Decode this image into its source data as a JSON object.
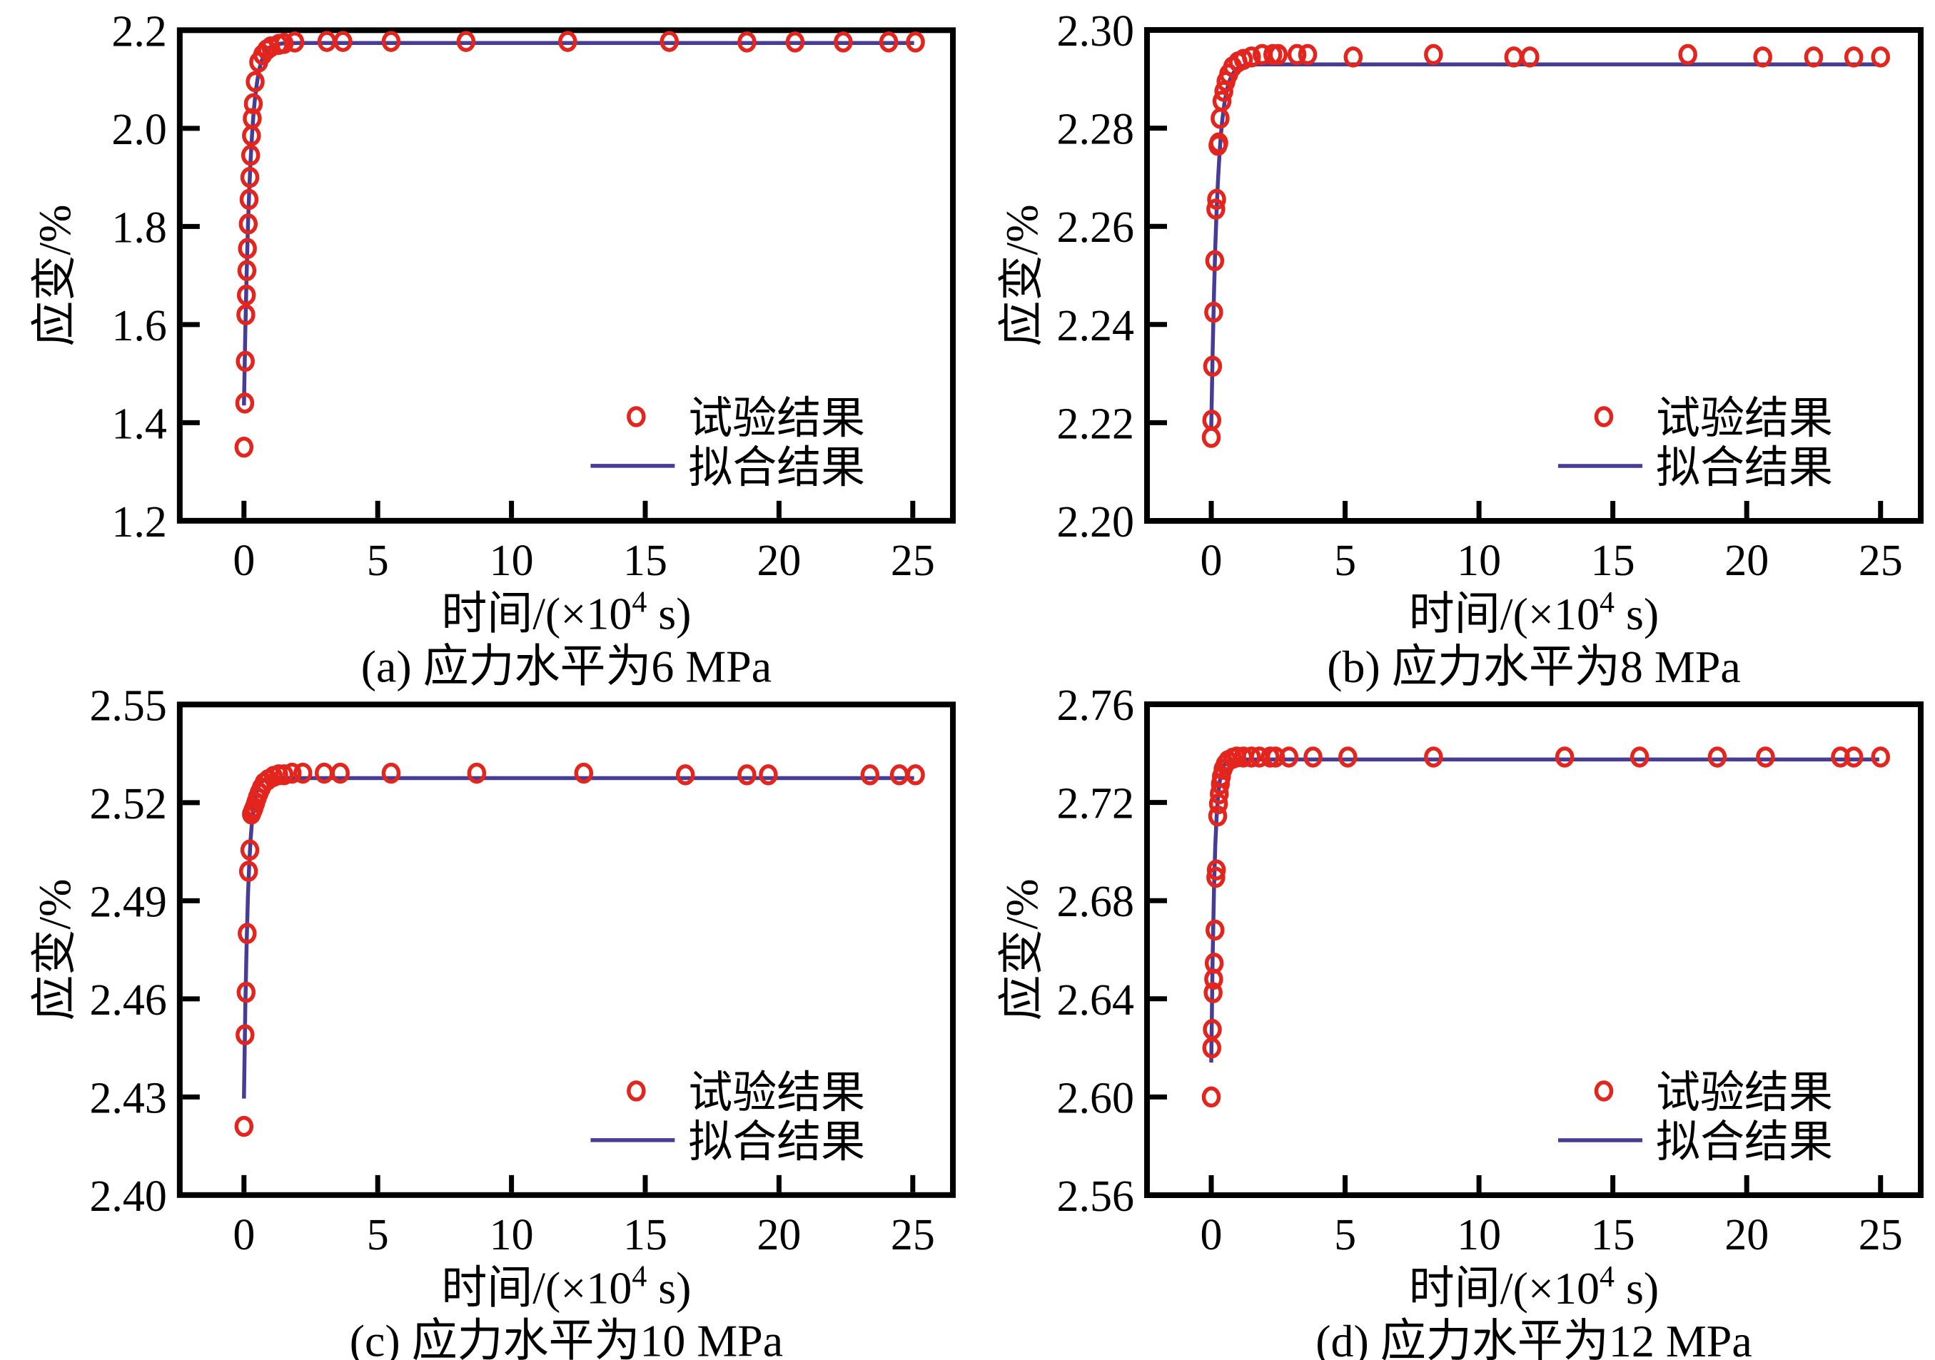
{
  "figure": {
    "background": "#ffffff"
  },
  "colors": {
    "marker": "#e3251e",
    "fit_line": "#473c96",
    "axis": "#000000"
  },
  "ylabel": "应变/%",
  "xlabel": {
    "prefix": "时间/(×10",
    "sup": "4",
    "suffix": " s)"
  },
  "legend": {
    "experiment": "试验结果",
    "fit": "拟合结果"
  },
  "chart_data": [
    {
      "type": "scatter",
      "caption": "(a) 应力水平为6 MPa",
      "xlabel": "时间/(×10⁴ s)",
      "ylabel": "应变/%",
      "xlim": [
        -2.4,
        26.5
      ],
      "ylim": [
        1.2,
        2.2
      ],
      "xticks": {
        "values": [
          0,
          5,
          10,
          15,
          20,
          25
        ],
        "labels": [
          "0",
          "5",
          "10",
          "15",
          "20",
          "25"
        ]
      },
      "yticks": {
        "values": [
          1.2,
          1.4,
          1.6,
          1.8,
          2.0,
          2.2
        ],
        "labels": [
          "1.2",
          "1.4",
          "1.6",
          "1.8",
          "2.0",
          "2.2"
        ]
      },
      "series": [
        {
          "name": "试验结果",
          "style": "open-circle"
        },
        {
          "name": "拟合结果",
          "style": "line"
        }
      ],
      "fit": {
        "start": 1.435,
        "plateau": 2.174,
        "tau": 0.22,
        "tmax": 25.1
      },
      "points": [
        [
          0,
          1.35
        ],
        [
          0.03,
          1.44
        ],
        [
          0.05,
          1.525
        ],
        [
          0.07,
          1.62
        ],
        [
          0.09,
          1.66
        ],
        [
          0.11,
          1.71
        ],
        [
          0.13,
          1.755
        ],
        [
          0.16,
          1.805
        ],
        [
          0.19,
          1.855
        ],
        [
          0.22,
          1.9
        ],
        [
          0.25,
          1.945
        ],
        [
          0.28,
          1.985
        ],
        [
          0.31,
          2.02
        ],
        [
          0.35,
          2.05
        ],
        [
          0.42,
          2.095
        ],
        [
          0.55,
          2.135
        ],
        [
          0.7,
          2.15
        ],
        [
          0.85,
          2.16
        ],
        [
          1.0,
          2.166
        ],
        [
          1.3,
          2.171
        ],
        [
          1.5,
          2.173
        ],
        [
          1.9,
          2.176
        ],
        [
          3.1,
          2.177
        ],
        [
          3.7,
          2.177
        ],
        [
          5.5,
          2.177
        ],
        [
          8.3,
          2.177
        ],
        [
          12.1,
          2.177
        ],
        [
          15.9,
          2.177
        ],
        [
          18.8,
          2.176
        ],
        [
          20.6,
          2.176
        ],
        [
          22.4,
          2.176
        ],
        [
          24.1,
          2.176
        ],
        [
          25.1,
          2.176
        ]
      ]
    },
    {
      "type": "scatter",
      "caption": "(b) 应力水平为8 MPa",
      "xlabel": "时间/(×10⁴ s)",
      "ylabel": "应变/%",
      "xlim": [
        -2.4,
        26.5
      ],
      "ylim": [
        2.2,
        2.3
      ],
      "xticks": {
        "values": [
          0,
          5,
          10,
          15,
          20,
          25
        ],
        "labels": [
          "0",
          "5",
          "10",
          "15",
          "20",
          "25"
        ]
      },
      "yticks": {
        "values": [
          2.2,
          2.22,
          2.24,
          2.26,
          2.28,
          2.3
        ],
        "labels": [
          "2.20",
          "2.22",
          "2.24",
          "2.26",
          "2.28",
          "2.30"
        ]
      },
      "series": [
        {
          "name": "试验结果",
          "style": "open-circle"
        },
        {
          "name": "拟合结果",
          "style": "line"
        }
      ],
      "fit": {
        "start": 2.219,
        "plateau": 2.293,
        "tau": 0.22,
        "tmax": 25.0
      },
      "points": [
        [
          0,
          2.217
        ],
        [
          0.02,
          2.2205
        ],
        [
          0.05,
          2.2315
        ],
        [
          0.09,
          2.2425
        ],
        [
          0.13,
          2.253
        ],
        [
          0.17,
          2.2635
        ],
        [
          0.2,
          2.2655
        ],
        [
          0.25,
          2.2765
        ],
        [
          0.28,
          2.277
        ],
        [
          0.33,
          2.282
        ],
        [
          0.4,
          2.2855
        ],
        [
          0.47,
          2.2875
        ],
        [
          0.55,
          2.2895
        ],
        [
          0.65,
          2.291
        ],
        [
          0.8,
          2.2925
        ],
        [
          1.0,
          2.2935
        ],
        [
          1.2,
          2.294
        ],
        [
          1.5,
          2.2945
        ],
        [
          1.9,
          2.295
        ],
        [
          2.3,
          2.295
        ],
        [
          2.5,
          2.295
        ],
        [
          3.2,
          2.295
        ],
        [
          3.6,
          2.295
        ],
        [
          5.3,
          2.2945
        ],
        [
          8.3,
          2.295
        ],
        [
          11.3,
          2.2945
        ],
        [
          11.9,
          2.2945
        ],
        [
          17.8,
          2.295
        ],
        [
          20.6,
          2.2945
        ],
        [
          22.5,
          2.2945
        ],
        [
          24.0,
          2.2945
        ],
        [
          25.0,
          2.2945
        ]
      ]
    },
    {
      "type": "scatter",
      "caption": "(c) 应力水平为10 MPa",
      "xlabel": "时间/(×10⁴ s)",
      "ylabel": "应变/%",
      "xlim": [
        -2.4,
        26.5
      ],
      "ylim": [
        2.4,
        2.55
      ],
      "xticks": {
        "values": [
          0,
          5,
          10,
          15,
          20,
          25
        ],
        "labels": [
          "0",
          "5",
          "10",
          "15",
          "20",
          "25"
        ]
      },
      "yticks": {
        "values": [
          2.4,
          2.43,
          2.46,
          2.49,
          2.52,
          2.55
        ],
        "labels": [
          "2.40",
          "2.43",
          "2.46",
          "2.49",
          "2.52",
          "2.55"
        ]
      },
      "series": [
        {
          "name": "试验结果",
          "style": "open-circle"
        },
        {
          "name": "拟合结果",
          "style": "line"
        }
      ],
      "fit": {
        "start": 2.4295,
        "plateau": 2.5275,
        "tau": 0.15,
        "tmax": 25.1
      },
      "points": [
        [
          0,
          2.421
        ],
        [
          0.04,
          2.449
        ],
        [
          0.08,
          2.462
        ],
        [
          0.12,
          2.48
        ],
        [
          0.17,
          2.499
        ],
        [
          0.22,
          2.5055
        ],
        [
          0.28,
          2.5165
        ],
        [
          0.33,
          2.5175
        ],
        [
          0.38,
          2.5185
        ],
        [
          0.44,
          2.52
        ],
        [
          0.5,
          2.5215
        ],
        [
          0.57,
          2.523
        ],
        [
          0.65,
          2.5245
        ],
        [
          0.75,
          2.526
        ],
        [
          0.9,
          2.527
        ],
        [
          1.1,
          2.528
        ],
        [
          1.3,
          2.5285
        ],
        [
          1.5,
          2.5285
        ],
        [
          1.8,
          2.529
        ],
        [
          2.2,
          2.529
        ],
        [
          3.0,
          2.529
        ],
        [
          3.6,
          2.529
        ],
        [
          5.5,
          2.529
        ],
        [
          8.7,
          2.529
        ],
        [
          12.7,
          2.529
        ],
        [
          16.5,
          2.5285
        ],
        [
          18.8,
          2.5285
        ],
        [
          19.6,
          2.5285
        ],
        [
          23.4,
          2.5285
        ],
        [
          24.5,
          2.5285
        ],
        [
          25.1,
          2.5285
        ]
      ]
    },
    {
      "type": "scatter",
      "caption": "(d) 应力水平为12 MPa",
      "xlabel": "时间/(×10⁴ s)",
      "ylabel": "应变/%",
      "xlim": [
        -2.4,
        26.5
      ],
      "ylim": [
        2.56,
        2.76
      ],
      "xticks": {
        "values": [
          0,
          5,
          10,
          15,
          20,
          25
        ],
        "labels": [
          "0",
          "5",
          "10",
          "15",
          "20",
          "25"
        ]
      },
      "yticks": {
        "values": [
          2.56,
          2.6,
          2.64,
          2.68,
          2.72,
          2.76
        ],
        "labels": [
          "2.56",
          "2.60",
          "2.64",
          "2.68",
          "2.72",
          "2.76"
        ]
      },
      "series": [
        {
          "name": "试验结果",
          "style": "open-circle"
        },
        {
          "name": "拟合结果",
          "style": "line"
        }
      ],
      "fit": {
        "start": 2.614,
        "plateau": 2.7375,
        "tau": 0.12,
        "tmax": 25.0
      },
      "points": [
        [
          0,
          2.6
        ],
        [
          0.02,
          2.62
        ],
        [
          0.04,
          2.6275
        ],
        [
          0.07,
          2.6425
        ],
        [
          0.09,
          2.648
        ],
        [
          0.11,
          2.6545
        ],
        [
          0.14,
          2.668
        ],
        [
          0.17,
          2.6895
        ],
        [
          0.19,
          2.6925
        ],
        [
          0.24,
          2.7145
        ],
        [
          0.27,
          2.7195
        ],
        [
          0.3,
          2.7235
        ],
        [
          0.34,
          2.7275
        ],
        [
          0.38,
          2.7305
        ],
        [
          0.44,
          2.7335
        ],
        [
          0.52,
          2.7355
        ],
        [
          0.62,
          2.737
        ],
        [
          0.8,
          2.738
        ],
        [
          0.95,
          2.7385
        ],
        [
          1.2,
          2.7385
        ],
        [
          1.5,
          2.7385
        ],
        [
          1.8,
          2.7385
        ],
        [
          2.2,
          2.7385
        ],
        [
          2.4,
          2.7385
        ],
        [
          2.9,
          2.7385
        ],
        [
          3.8,
          2.7385
        ],
        [
          5.1,
          2.7385
        ],
        [
          8.3,
          2.7385
        ],
        [
          13.2,
          2.7385
        ],
        [
          16.0,
          2.7385
        ],
        [
          18.9,
          2.7385
        ],
        [
          20.7,
          2.7385
        ],
        [
          23.5,
          2.7385
        ],
        [
          24.0,
          2.7385
        ],
        [
          25.0,
          2.7385
        ]
      ]
    }
  ]
}
